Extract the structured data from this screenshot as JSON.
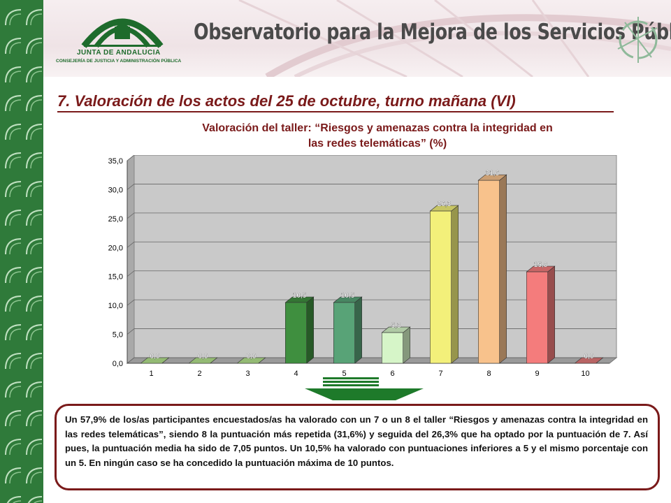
{
  "header": {
    "org_name": "JUNTA DE ANDALUCIA",
    "org_department": "CONSEJERÍA DE JUSTICIA Y ADMINISTRACIÓN PÚBLICA",
    "site_title": "Observatorio para la Mejora de los Servicios Públicos"
  },
  "section": {
    "title": "7. Valoración de los actos del 25 de octubre, turno mañana (VI)"
  },
  "chart_data": {
    "type": "bar",
    "title": "Valoración del taller: “Riesgos y amenazas contra la integridad en las redes telemáticas” (%)",
    "title_line1": "Valoración del taller: “Riesgos y amenazas contra la integridad en",
    "title_line2": "las redes telemáticas” (%)",
    "categories": [
      "1",
      "2",
      "3",
      "4",
      "5",
      "6",
      "7",
      "8",
      "9",
      "10"
    ],
    "values": [
      0.0,
      0.0,
      0.0,
      10.5,
      10.5,
      5.3,
      26.3,
      31.6,
      15.8,
      0.0
    ],
    "value_labels": [
      "0,0",
      "0,0",
      "0,0",
      "10,5",
      "10,5",
      "5,3",
      "26,3",
      "31,6",
      "15,8",
      "0,0"
    ],
    "ylim": [
      0,
      35
    ],
    "yticks": [
      0,
      5,
      10,
      15,
      20,
      25,
      30,
      35
    ],
    "ytick_labels": [
      "0,0",
      "5,0",
      "10,0",
      "15,0",
      "20,0",
      "25,0",
      "30,0",
      "35,0"
    ],
    "grid": true,
    "xlabel": "",
    "ylabel": "",
    "bar_colors": [
      "#b5e38e",
      "#b5e38e",
      "#b5e38e",
      "#3f8f3f",
      "#58a377",
      "#d6f5c8",
      "#f3f07a",
      "#f8c28c",
      "#f47c7c",
      "#e07a7a"
    ]
  },
  "summary": {
    "text": "Un 57,9% de los/as participantes encuestados/as ha valorado con un 7 o un 8 el taller “Riesgos y amenazas contra la integridad en las redes telemáticas”, siendo 8 la puntuación más repetida (31,6%) y seguida del 26,3% que ha optado por la puntuación de 7. Así pues, la puntuación media ha sido de 7,05 puntos. Un 10,5% ha valorado con puntuaciones inferiores a 5 y el mismo porcentaje con un 5. En ningún caso se ha concedido la puntuación máxima de 10 puntos."
  }
}
